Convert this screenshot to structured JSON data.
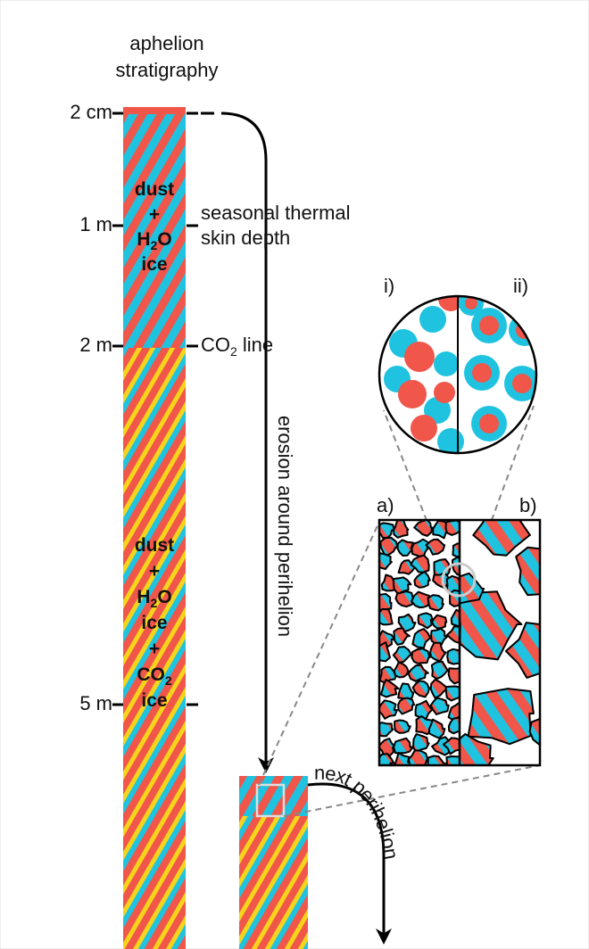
{
  "title_lines": [
    "aphelion",
    "stratigraphy"
  ],
  "depth_ticks": [
    "2 cm",
    "1 m",
    "2 m",
    "5 m"
  ],
  "upper_layer_label": [
    [
      "dust"
    ],
    [
      "+"
    ],
    [
      "H",
      "2",
      "O"
    ],
    [
      "ice"
    ]
  ],
  "lower_layer_label": [
    [
      "dust"
    ],
    [
      "+"
    ],
    [
      "H",
      "2",
      "O"
    ],
    [
      "ice"
    ],
    [
      "+"
    ],
    [
      "CO",
      "2"
    ],
    [
      "ice"
    ]
  ],
  "skin_depth_label": [
    "seasonal thermal",
    "skin depth"
  ],
  "co2_line_label": [
    "CO",
    "2",
    " line"
  ],
  "erosion_label": "erosion around perihelion",
  "next_label": "next perihelion",
  "panel_labels": [
    "i)",
    "ii)",
    "a)",
    "b)"
  ]
}
